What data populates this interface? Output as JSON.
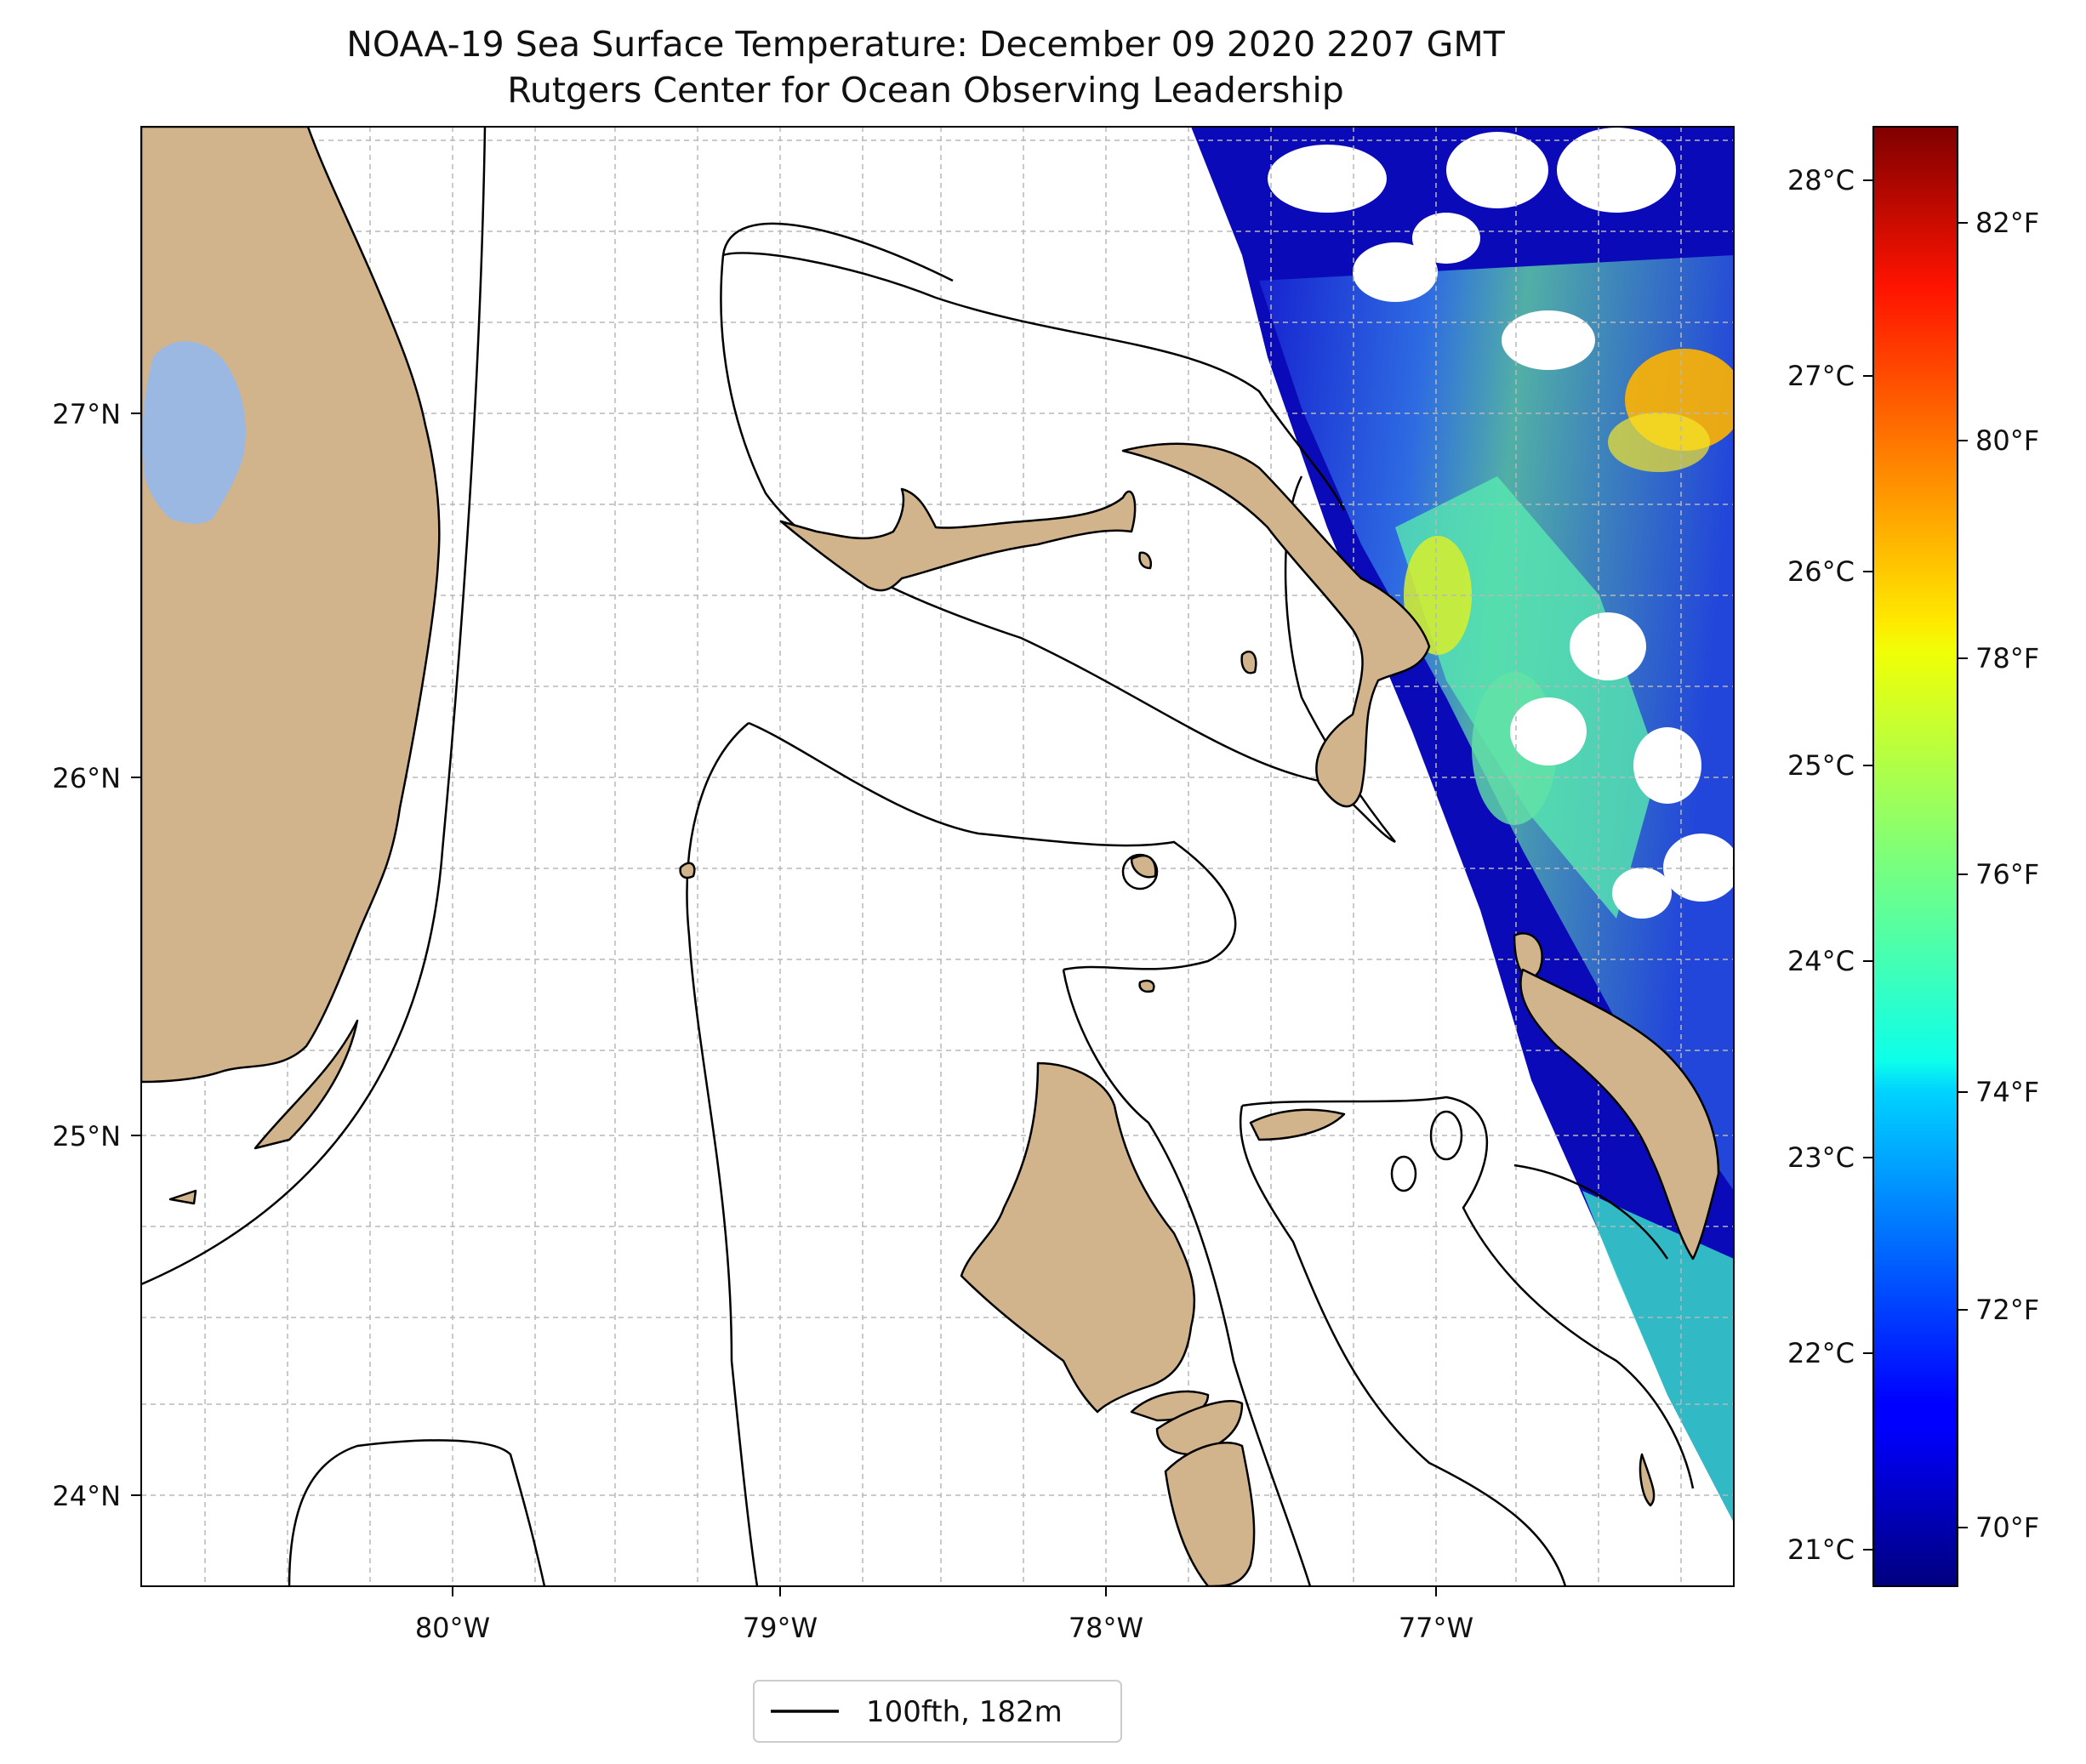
{
  "title": {
    "line1": "NOAA-19 Sea Surface Temperature: December 09 2020 2207 GMT",
    "line2": "Rutgers Center for Ocean Observing Leadership"
  },
  "map": {
    "lon_range": [
      -80.95,
      -76.1
    ],
    "lat_range": [
      23.75,
      27.8
    ],
    "gridlines": true,
    "lon_ticks": [
      "80°W",
      "79°W",
      "78°W",
      "77°W"
    ],
    "lat_ticks": [
      "24°N",
      "25°N",
      "26°N",
      "27°N"
    ],
    "colors": {
      "land": "#d2b48c",
      "lake": "#9ab8e2",
      "ocean_no_data": "#ffffff",
      "coastline": "#000000",
      "isobath": "#000000"
    },
    "features": [
      "florida-peninsula",
      "lake-okeechobee",
      "florida-keys",
      "grand-bahama",
      "abaco-islands",
      "andros-island",
      "eleuthera",
      "new-providence",
      "exuma-cays",
      "100-fathom-isobath",
      "sst-swath"
    ]
  },
  "colorbar": {
    "colormap": "jet",
    "celsius_ticks": [
      "21°C",
      "22°C",
      "23°C",
      "24°C",
      "25°C",
      "26°C",
      "27°C",
      "28°C"
    ],
    "fahrenheit_ticks": [
      "70°F",
      "72°F",
      "74°F",
      "76°F",
      "78°F",
      "80°F",
      "82°F"
    ]
  },
  "legend": {
    "label": "100fth, 182m"
  }
}
